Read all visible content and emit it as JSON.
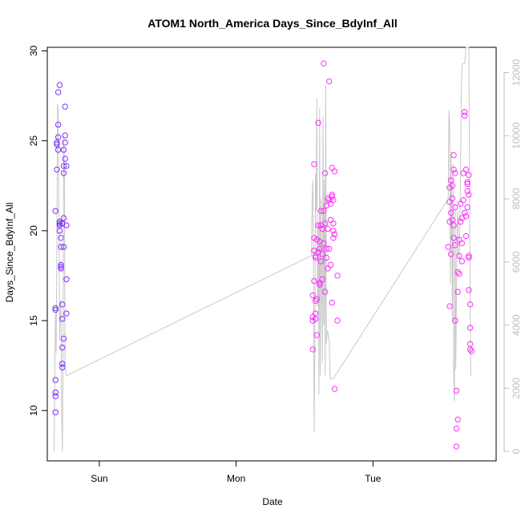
{
  "chart_data": {
    "type": "scatter",
    "title": "ATOM1 North_America Days_Since_BdyInf_All",
    "xlabel": "Date",
    "ylabel": "Days_Since_BdyInf_All",
    "x_tick_labels": [
      "Sun",
      "Mon",
      "Tue"
    ],
    "y_ticks": [
      10,
      15,
      20,
      25,
      30
    ],
    "ylim": [
      7.2,
      30.2
    ],
    "secondary_y_ticks": [
      0,
      2000,
      4000,
      6000,
      8000,
      10000,
      12000
    ],
    "secondary_ylim": [
      -300,
      12800
    ],
    "colors": {
      "points_start": "#7b2cff",
      "points_end": "#ff2cff",
      "line": "#c8c8c8",
      "axis": "#000000",
      "secondary_axis": "#bdbdbd"
    },
    "series": [
      {
        "values": [
          [
            -0.32,
            9.9
          ],
          [
            -0.32,
            10.8
          ],
          [
            -0.32,
            11.0
          ],
          [
            -0.32,
            11.7
          ],
          [
            -0.32,
            15.6
          ],
          [
            -0.32,
            15.7
          ],
          [
            -0.32,
            21.1
          ],
          [
            -0.31,
            23.4
          ],
          [
            -0.31,
            24.8
          ],
          [
            -0.31,
            24.9
          ],
          [
            -0.3,
            24.5
          ],
          [
            -0.3,
            25.2
          ],
          [
            -0.3,
            25.9
          ],
          [
            -0.3,
            27.7
          ],
          [
            -0.29,
            28.1
          ],
          [
            -0.29,
            20.0
          ],
          [
            -0.29,
            20.4
          ],
          [
            -0.29,
            20.5
          ],
          [
            -0.29,
            20.3
          ],
          [
            -0.28,
            19.1
          ],
          [
            -0.28,
            19.6
          ],
          [
            -0.28,
            18.0
          ],
          [
            -0.28,
            18.1
          ],
          [
            -0.28,
            17.9
          ],
          [
            -0.27,
            20.4
          ],
          [
            -0.27,
            20.4
          ],
          [
            -0.27,
            12.6
          ],
          [
            -0.27,
            12.4
          ],
          [
            -0.27,
            13.5
          ],
          [
            -0.27,
            15.1
          ],
          [
            -0.27,
            15.9
          ],
          [
            -0.26,
            14.0
          ],
          [
            -0.26,
            20.7
          ],
          [
            -0.26,
            19.1
          ],
          [
            -0.26,
            23.2
          ],
          [
            -0.26,
            23.6
          ],
          [
            -0.26,
            24.5
          ],
          [
            -0.25,
            26.9
          ],
          [
            -0.25,
            25.3
          ],
          [
            -0.25,
            24.9
          ],
          [
            -0.25,
            24.0
          ],
          [
            -0.24,
            23.6
          ],
          [
            -0.24,
            20.3
          ],
          [
            -0.24,
            17.3
          ],
          [
            -0.24,
            15.4
          ],
          [
            1.56,
            13.4
          ],
          [
            1.56,
            15.0
          ],
          [
            1.56,
            15.2
          ],
          [
            1.56,
            16.4
          ],
          [
            1.57,
            17.2
          ],
          [
            1.57,
            18.9
          ],
          [
            1.57,
            19.6
          ],
          [
            1.57,
            23.7
          ],
          [
            1.58,
            15.1
          ],
          [
            1.58,
            15.4
          ],
          [
            1.58,
            16.1
          ],
          [
            1.58,
            18.5
          ],
          [
            1.58,
            18.6
          ],
          [
            1.59,
            19.5
          ],
          [
            1.59,
            16.2
          ],
          [
            1.59,
            14.2
          ],
          [
            1.6,
            18.8
          ],
          [
            1.6,
            20.3
          ],
          [
            1.6,
            26.0
          ],
          [
            1.61,
            17.1
          ],
          [
            1.61,
            17.0
          ],
          [
            1.61,
            19.0
          ],
          [
            1.61,
            19.4
          ],
          [
            1.62,
            21.1
          ],
          [
            1.62,
            20.3
          ],
          [
            1.62,
            18.3
          ],
          [
            1.63,
            18.7
          ],
          [
            1.63,
            17.3
          ],
          [
            1.63,
            20.1
          ],
          [
            1.64,
            29.3
          ],
          [
            1.64,
            21.1
          ],
          [
            1.64,
            19.3
          ],
          [
            1.65,
            20.4
          ],
          [
            1.65,
            16.6
          ],
          [
            1.65,
            23.2
          ],
          [
            1.66,
            19.0
          ],
          [
            1.66,
            21.4
          ],
          [
            1.66,
            18.5
          ],
          [
            1.67,
            21.8
          ],
          [
            1.67,
            20.1
          ],
          [
            1.67,
            17.9
          ],
          [
            1.68,
            28.3
          ],
          [
            1.68,
            21.7
          ],
          [
            1.68,
            19.0
          ],
          [
            1.69,
            20.6
          ],
          [
            1.69,
            21.5
          ],
          [
            1.69,
            18.1
          ],
          [
            1.7,
            16.0
          ],
          [
            1.7,
            23.5
          ],
          [
            1.7,
            22.0
          ],
          [
            1.7,
            21.9
          ],
          [
            1.71,
            21.7
          ],
          [
            1.71,
            20.4
          ],
          [
            1.71,
            20.0
          ],
          [
            1.71,
            19.6
          ],
          [
            1.72,
            23.3
          ],
          [
            1.72,
            19.8
          ],
          [
            1.72,
            11.2
          ],
          [
            1.74,
            17.5
          ],
          [
            1.74,
            15.0
          ],
          [
            2.55,
            19.1
          ],
          [
            2.56,
            15.8
          ],
          [
            2.56,
            20.5
          ],
          [
            2.56,
            21.6
          ],
          [
            2.56,
            22.4
          ],
          [
            2.57,
            18.7
          ],
          [
            2.57,
            21.0
          ],
          [
            2.57,
            22.8
          ],
          [
            2.58,
            21.8
          ],
          [
            2.58,
            22.5
          ],
          [
            2.58,
            20.6
          ],
          [
            2.59,
            23.4
          ],
          [
            2.59,
            24.2
          ],
          [
            2.59,
            20.3
          ],
          [
            2.59,
            19.6
          ],
          [
            2.6,
            21.3
          ],
          [
            2.6,
            23.2
          ],
          [
            2.6,
            19.2
          ],
          [
            2.6,
            15.0
          ],
          [
            2.61,
            11.1
          ],
          [
            2.61,
            8.0
          ],
          [
            2.61,
            9.0
          ],
          [
            2.62,
            9.5
          ],
          [
            2.62,
            17.7
          ],
          [
            2.62,
            16.6
          ],
          [
            2.63,
            18.6
          ],
          [
            2.63,
            17.6
          ],
          [
            2.63,
            19.5
          ],
          [
            2.64,
            21.5
          ],
          [
            2.64,
            20.5
          ],
          [
            2.65,
            19.3
          ],
          [
            2.65,
            18.3
          ],
          [
            2.65,
            20.7
          ],
          [
            2.66,
            23.2
          ],
          [
            2.66,
            21.7
          ],
          [
            2.67,
            21.0
          ],
          [
            2.67,
            26.4
          ],
          [
            2.67,
            26.6
          ],
          [
            2.68,
            23.4
          ],
          [
            2.68,
            20.8
          ],
          [
            2.68,
            19.7
          ],
          [
            2.69,
            22.2
          ],
          [
            2.69,
            22.7
          ],
          [
            2.69,
            22.6
          ],
          [
            2.69,
            21.3
          ],
          [
            2.7,
            22.0
          ],
          [
            2.7,
            23.1
          ],
          [
            2.7,
            18.6
          ],
          [
            2.7,
            18.5
          ],
          [
            2.7,
            16.7
          ],
          [
            2.71,
            15.9
          ],
          [
            2.71,
            14.6
          ],
          [
            2.71,
            13.7
          ],
          [
            2.71,
            13.4
          ],
          [
            2.72,
            13.3
          ]
        ]
      }
    ],
    "secondary_series": {
      "values": [
        [
          -0.33,
          0
        ],
        [
          -0.325,
          2600
        ],
        [
          -0.32,
          4400
        ],
        [
          -0.315,
          3100
        ],
        [
          -0.31,
          6800
        ],
        [
          -0.305,
          11000
        ],
        [
          -0.3,
          10800
        ],
        [
          -0.295,
          7600
        ],
        [
          -0.29,
          3500
        ],
        [
          -0.285,
          4800
        ],
        [
          -0.28,
          4700
        ],
        [
          -0.275,
          1400
        ],
        [
          -0.27,
          0
        ],
        [
          -0.265,
          2800
        ],
        [
          -0.26,
          10000
        ],
        [
          -0.255,
          9100
        ],
        [
          -0.25,
          2700
        ],
        [
          -0.245,
          2500
        ],
        [
          -0.24,
          2400
        ],
        [
          1.55,
          6200
        ],
        [
          1.555,
          8000
        ],
        [
          1.56,
          8600
        ],
        [
          1.565,
          6200
        ],
        [
          1.57,
          600
        ],
        [
          1.575,
          3100
        ],
        [
          1.58,
          8800
        ],
        [
          1.585,
          7600
        ],
        [
          1.59,
          11200
        ],
        [
          1.595,
          4600
        ],
        [
          1.6,
          7200
        ],
        [
          1.605,
          1800
        ],
        [
          1.61,
          10900
        ],
        [
          1.615,
          2400
        ],
        [
          1.62,
          8000
        ],
        [
          1.625,
          5400
        ],
        [
          1.63,
          2800
        ],
        [
          1.635,
          10600
        ],
        [
          1.64,
          4000
        ],
        [
          1.645,
          8600
        ],
        [
          1.65,
          2400
        ],
        [
          1.655,
          11600
        ],
        [
          1.66,
          3400
        ],
        [
          1.665,
          3800
        ],
        [
          1.67,
          3800
        ],
        [
          1.675,
          3600
        ],
        [
          1.68,
          3600
        ],
        [
          1.685,
          2500
        ],
        [
          1.69,
          2300
        ],
        [
          1.7,
          2300
        ],
        [
          1.71,
          2300
        ],
        [
          2.55,
          8000
        ],
        [
          2.555,
          10800
        ],
        [
          2.56,
          10400
        ],
        [
          2.565,
          5300
        ],
        [
          2.57,
          9500
        ],
        [
          2.575,
          7600
        ],
        [
          2.58,
          4200
        ],
        [
          2.585,
          9100
        ],
        [
          2.59,
          2400
        ],
        [
          2.595,
          1600
        ],
        [
          2.6,
          7800
        ],
        [
          2.605,
          2600
        ],
        [
          2.61,
          4800
        ],
        [
          2.615,
          7200
        ],
        [
          2.62,
          7600
        ],
        [
          2.625,
          6200
        ],
        [
          2.63,
          6100
        ],
        [
          2.635,
          7300
        ],
        [
          2.64,
          8800
        ],
        [
          2.645,
          11200
        ],
        [
          2.65,
          12200
        ],
        [
          2.66,
          12300
        ],
        [
          2.67,
          12300
        ],
        [
          2.68,
          12800
        ],
        [
          2.69,
          12800
        ],
        [
          2.7,
          12800
        ],
        [
          2.705,
          9300
        ],
        [
          2.71,
          4600
        ],
        [
          2.715,
          2400
        ]
      ]
    },
    "grid": false,
    "legend": "none"
  }
}
